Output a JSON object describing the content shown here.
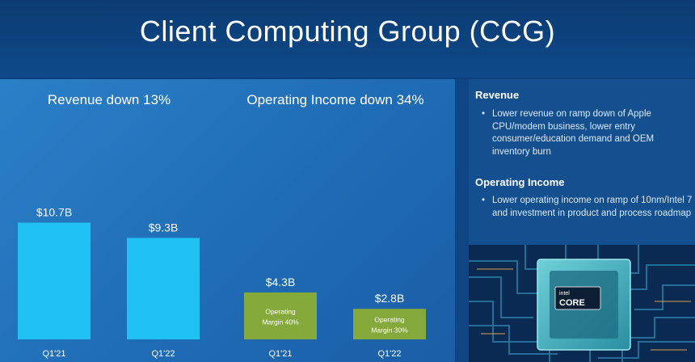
{
  "page": {
    "title": "Client Computing Group (CCG)"
  },
  "chart_data": [
    {
      "type": "bar",
      "title": "Revenue down 13%",
      "categories": [
        "Q1'21",
        "Q1'22"
      ],
      "values": [
        10.7,
        9.3
      ],
      "data_labels": [
        "$10.7B",
        "$9.3B"
      ],
      "unit": "$B",
      "color": "#1fc2f3"
    },
    {
      "type": "bar",
      "title": "Operating Income down 34%",
      "categories": [
        "Q1'21",
        "Q1'22"
      ],
      "values": [
        4.3,
        2.8
      ],
      "data_labels": [
        "$4.3B",
        "$2.8B"
      ],
      "inner_labels": [
        [
          "Operating",
          "Margin 40%"
        ],
        [
          "Operating",
          "Margin 30%"
        ]
      ],
      "operating_margin_percent": [
        40,
        30
      ],
      "unit": "$B",
      "color": "#86a93b"
    }
  ],
  "sidebar": {
    "sections": [
      {
        "heading": "Revenue",
        "bullets": [
          "Lower revenue on ramp down of Apple CPU/modem business, lower entry consumer/education demand and OEM inventory burn"
        ]
      },
      {
        "heading": "Operating Income",
        "bullets": [
          "Lower operating income on ramp of 10nm/Intel 7 and investment in product and process roadmap"
        ]
      }
    ],
    "chip": {
      "brand": "intel",
      "model": "CORE"
    }
  },
  "colors": {
    "background": "#0d3f7a",
    "revenue_bar": "#1fc2f3",
    "income_bar": "#86a93b",
    "panel": "#1f6cb6"
  }
}
